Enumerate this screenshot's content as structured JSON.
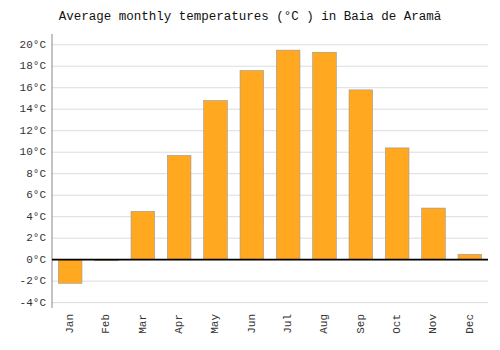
{
  "chart_data": {
    "type": "bar",
    "title": "Average monthly temperatures (°C ) in Baia de Aramă",
    "categories": [
      "Jan",
      "Feb",
      "Mar",
      "Apr",
      "May",
      "Jun",
      "Jul",
      "Aug",
      "Sep",
      "Oct",
      "Nov",
      "Dec"
    ],
    "values": [
      -2.2,
      -0.1,
      4.5,
      9.7,
      14.8,
      17.6,
      19.5,
      19.3,
      15.8,
      10.4,
      4.8,
      0.5
    ],
    "color": "#FFA820",
    "ylim": [
      -4.5,
      21.0
    ],
    "yticks": [
      {
        "value": -4,
        "label": "-4°C"
      },
      {
        "value": -2,
        "label": "-2°C"
      },
      {
        "value": 0,
        "label": "0°C"
      },
      {
        "value": 2,
        "label": "2°C"
      },
      {
        "value": 4,
        "label": "4°C"
      },
      {
        "value": 6,
        "label": "6°C"
      },
      {
        "value": 8,
        "label": "8°C"
      },
      {
        "value": 10,
        "label": "10°C"
      },
      {
        "value": 12,
        "label": "12°C"
      },
      {
        "value": 14,
        "label": "14°C"
      },
      {
        "value": 16,
        "label": "16°C"
      },
      {
        "value": 18,
        "label": "18°C"
      },
      {
        "value": 20,
        "label": "20°C"
      }
    ],
    "grid": true
  }
}
